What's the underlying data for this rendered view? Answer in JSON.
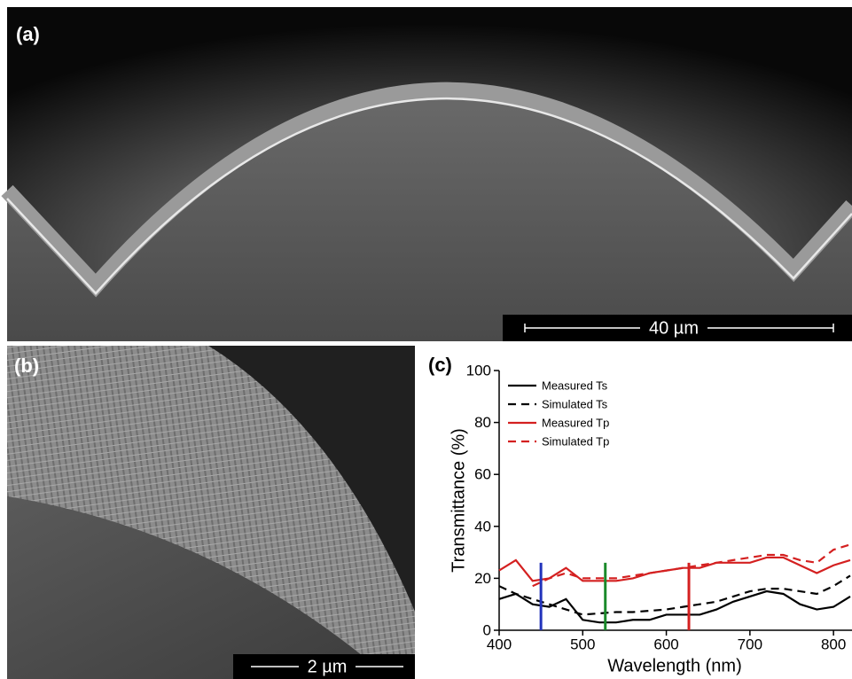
{
  "panels": {
    "a": {
      "label": "(a)",
      "scale_bar": "40 µm"
    },
    "b": {
      "label": "(b)",
      "scale_bar": "2 µm"
    },
    "c": {
      "label": "(c)"
    }
  },
  "chart_data": {
    "type": "line",
    "x_label": "Wavelength (nm)",
    "y_label": "Transmittance (%)",
    "x": [
      400,
      420,
      440,
      460,
      480,
      500,
      520,
      540,
      560,
      580,
      600,
      620,
      640,
      660,
      680,
      700,
      720,
      740,
      760,
      780,
      800,
      820
    ],
    "series": [
      {
        "name": "Measured Ts",
        "color": "#000000",
        "linestyle": "solid",
        "values": [
          12,
          14,
          10,
          9,
          12,
          4,
          3,
          3,
          4,
          4,
          6,
          6,
          6,
          8,
          11,
          13,
          15,
          14,
          10,
          8,
          9,
          13
        ]
      },
      {
        "name": "Simulated Ts",
        "color": "#000000",
        "linestyle": "dashed",
        "values": [
          17,
          14,
          12,
          10,
          8,
          6,
          6.5,
          7,
          7,
          7.5,
          8,
          9,
          10,
          11,
          13,
          15,
          16,
          16,
          15,
          14,
          17,
          21
        ]
      },
      {
        "name": "Measured Tp",
        "color": "#d42020",
        "linestyle": "solid",
        "values": [
          23,
          27,
          19,
          20,
          24,
          19,
          19,
          19,
          20,
          22,
          23,
          24,
          24,
          26,
          26,
          26,
          28,
          28,
          25,
          22,
          25,
          27
        ]
      },
      {
        "name": "Simulated Tp",
        "color": "#d42020",
        "linestyle": "dashed",
        "values": [
          null,
          null,
          17,
          20,
          22,
          20,
          20,
          20,
          21,
          22,
          23,
          24,
          25,
          26,
          27,
          28,
          29,
          29,
          27,
          26,
          31,
          33
        ]
      }
    ],
    "markers": [
      {
        "x": 450,
        "ymax": 26,
        "color": "#2233bb"
      },
      {
        "x": 527,
        "ymax": 26,
        "color": "#1a8a2a"
      },
      {
        "x": 627,
        "ymax": 26,
        "color": "#d42020"
      }
    ],
    "xlim": [
      400,
      820
    ],
    "ylim": [
      0,
      100
    ],
    "xticks": [
      400,
      500,
      600,
      700,
      800
    ],
    "yticks": [
      0,
      20,
      40,
      60,
      80,
      100
    ],
    "legend": "upper-left"
  }
}
